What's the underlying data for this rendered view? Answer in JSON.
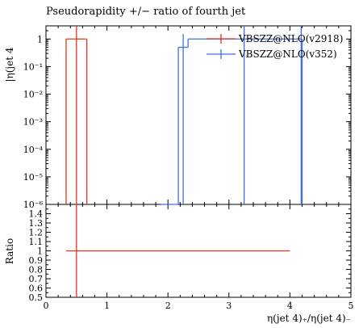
{
  "chart_data": {
    "type": "line",
    "title": "Pseudorapidity +/− ratio of fourth jet",
    "xlabel": "η(jet 4)₊/η(jet 4)₋",
    "ylabel": "|η(jet 4",
    "ratio_ylabel": "Ratio",
    "xlim": [
      0,
      5
    ],
    "ylim": [
      1e-06,
      3
    ],
    "ylog": true,
    "ratio_ylim": [
      0.5,
      1.5
    ],
    "x_ticks": [
      "0",
      "1",
      "2",
      "3",
      "4",
      "5"
    ],
    "y_ticks": [
      "1",
      "10⁻¹",
      "10⁻²",
      "10⁻³",
      "10⁻⁴",
      "10⁻⁵",
      "10⁻⁶"
    ],
    "ratio_ticks": [
      "0.5",
      "0.6",
      "0.7",
      "0.8",
      "0.9",
      "1",
      "1.1",
      "1.2",
      "1.3",
      "1.4"
    ],
    "legend_position": "top-right",
    "series": [
      {
        "name": "VBSZZ@NLO(v2918)",
        "color": "#e8321e",
        "bins": [
          {
            "x0": 0.33,
            "x1": 0.67,
            "y": 1,
            "ylow": 1e-06,
            "yhigh": 3
          }
        ],
        "ratio": [
          {
            "x0": 0.33,
            "x1": 4.0,
            "y": 1.0
          }
        ]
      },
      {
        "name": "VBSZZ@NLO(v352)",
        "color": "#3e6fe0",
        "bins": [
          {
            "x0": 1.88,
            "x1": 2.17,
            "y": 0,
            "ylow": 1e-06,
            "yhigh": 1e-06
          },
          {
            "x0": 2.17,
            "x1": 2.33,
            "y": 0.5,
            "ylow": 1e-06,
            "yhigh": 1.5
          },
          {
            "x0": 2.33,
            "x1": 4.17,
            "y": 1,
            "ylow": 1e-06,
            "yhigh": 3
          },
          {
            "x0": 4.17,
            "x1": 4.2,
            "y": 1,
            "ylow": 1e-06,
            "yhigh": 3
          }
        ]
      }
    ]
  }
}
